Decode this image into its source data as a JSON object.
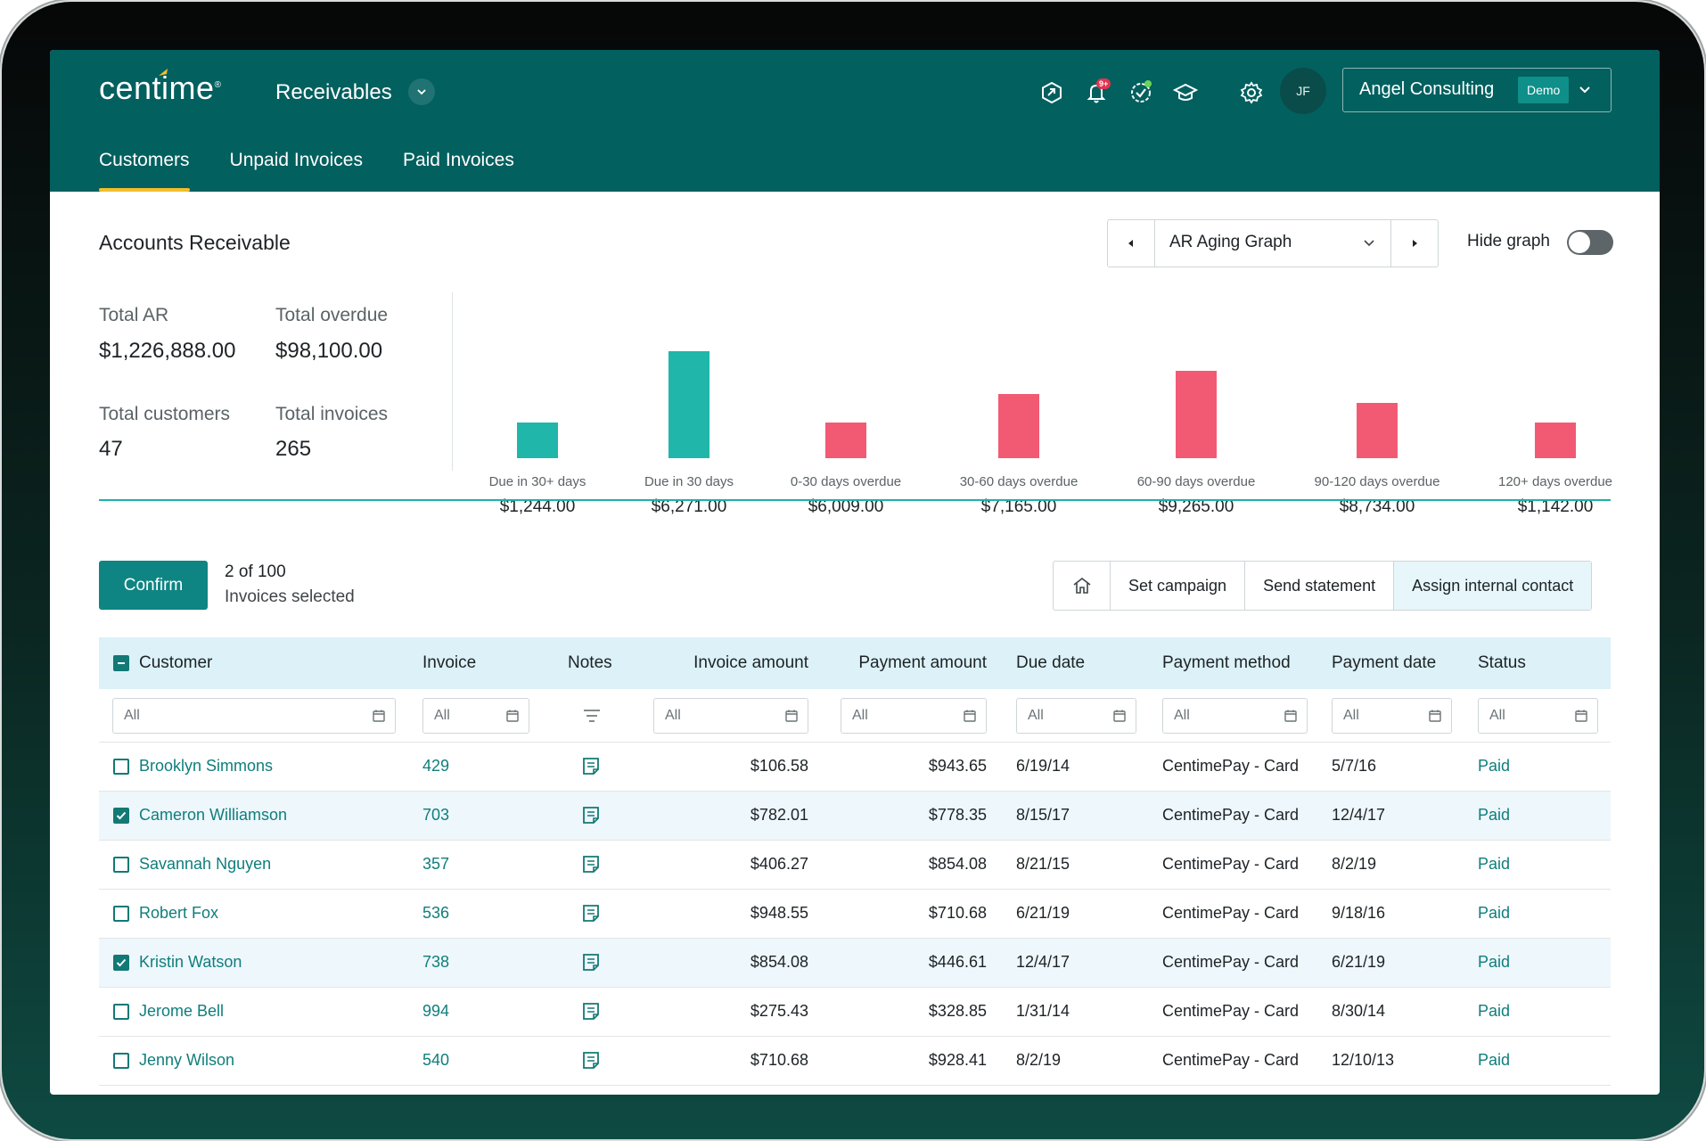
{
  "app": {
    "logo": "centime",
    "module": "Receivables",
    "avatar_initials": "JF",
    "notification_badge": "9+",
    "company_name": "Angel Consulting",
    "company_tag": "Demo",
    "brand_color": "#02605f",
    "accent_color": "#f3be2b"
  },
  "tabs": [
    {
      "label": "Customers",
      "active": true
    },
    {
      "label": "Unpaid Invoices",
      "active": false
    },
    {
      "label": "Paid Invoices",
      "active": false
    }
  ],
  "ar": {
    "title": "Accounts Receivable",
    "graph_selector": "AR Aging Graph",
    "hide_graph_label": "Hide graph",
    "stats": {
      "total_ar_label": "Total AR",
      "total_ar_value": "$1,226,888.00",
      "total_overdue_label": "Total overdue",
      "total_overdue_value": "$98,100.00",
      "total_customers_label": "Total customers",
      "total_customers_value": "47",
      "total_invoices_label": "Total invoices",
      "total_invoices_value": "265"
    }
  },
  "chart_data": {
    "type": "bar",
    "title": "AR Aging Graph",
    "categories": [
      "Due in 30+ days",
      "Due in 30 days",
      "0-30 days overdue",
      "30-60 days overdue",
      "60-90 days overdue",
      "90-120 days overdue",
      "120+ days overdue"
    ],
    "values": [
      1244,
      6271,
      6009,
      7165,
      9265,
      8734,
      1142
    ],
    "value_labels": [
      "$1,244.00",
      "$6,271.00",
      "$6,009.00",
      "$7,165.00",
      "$9,265.00",
      "$8,734.00",
      "$1,142.00"
    ],
    "bar_levels": [
      0.33,
      1.0,
      0.33,
      0.6,
      0.82,
      0.52,
      0.33
    ],
    "colors": [
      "#20b6aa",
      "#20b6aa",
      "#f25a74",
      "#f25a74",
      "#f25a74",
      "#f25a74",
      "#f25a74"
    ]
  },
  "selection": {
    "confirm_label": "Confirm",
    "count": "2 of 100",
    "text": "Invoices selected"
  },
  "actions": {
    "set_campaign": "Set campaign",
    "send_statement": "Send statement",
    "assign_contact": "Assign internal contact"
  },
  "table": {
    "headers": {
      "customer": "Customer",
      "invoice": "Invoice",
      "notes": "Notes",
      "invoice_amount": "Invoice amount",
      "payment_amount": "Payment amount",
      "due_date": "Due date",
      "payment_method": "Payment method",
      "payment_date": "Payment date",
      "status": "Status"
    },
    "filter_placeholder": "All",
    "rows": [
      {
        "customer": "Brooklyn Simmons",
        "invoice": "429",
        "invoice_amount": "$106.58",
        "payment_amount": "$943.65",
        "due_date": "6/19/14",
        "payment_method": "CentimePay - Card",
        "payment_date": "5/7/16",
        "status": "Paid",
        "selected": false
      },
      {
        "customer": "Cameron Williamson",
        "invoice": "703",
        "invoice_amount": "$782.01",
        "payment_amount": "$778.35",
        "due_date": "8/15/17",
        "payment_method": "CentimePay - Card",
        "payment_date": "12/4/17",
        "status": "Paid",
        "selected": true
      },
      {
        "customer": "Savannah Nguyen",
        "invoice": "357",
        "invoice_amount": "$406.27",
        "payment_amount": "$854.08",
        "due_date": "8/21/15",
        "payment_method": "CentimePay - Card",
        "payment_date": "8/2/19",
        "status": "Paid",
        "selected": false
      },
      {
        "customer": "Robert Fox",
        "invoice": "536",
        "invoice_amount": "$948.55",
        "payment_amount": "$710.68",
        "due_date": "6/21/19",
        "payment_method": "CentimePay - Card",
        "payment_date": "9/18/16",
        "status": "Paid",
        "selected": false
      },
      {
        "customer": "Kristin Watson",
        "invoice": "738",
        "invoice_amount": "$854.08",
        "payment_amount": "$446.61",
        "due_date": "12/4/17",
        "payment_method": "CentimePay - Card",
        "payment_date": "6/21/19",
        "status": "Paid",
        "selected": true
      },
      {
        "customer": "Jerome Bell",
        "invoice": "994",
        "invoice_amount": "$275.43",
        "payment_amount": "$328.85",
        "due_date": "1/31/14",
        "payment_method": "CentimePay - Card",
        "payment_date": "8/30/14",
        "status": "Paid",
        "selected": false
      },
      {
        "customer": "Jenny Wilson",
        "invoice": "540",
        "invoice_amount": "$710.68",
        "payment_amount": "$928.41",
        "due_date": "8/2/19",
        "payment_method": "CentimePay - Card",
        "payment_date": "12/10/13",
        "status": "Paid",
        "selected": false
      }
    ]
  }
}
